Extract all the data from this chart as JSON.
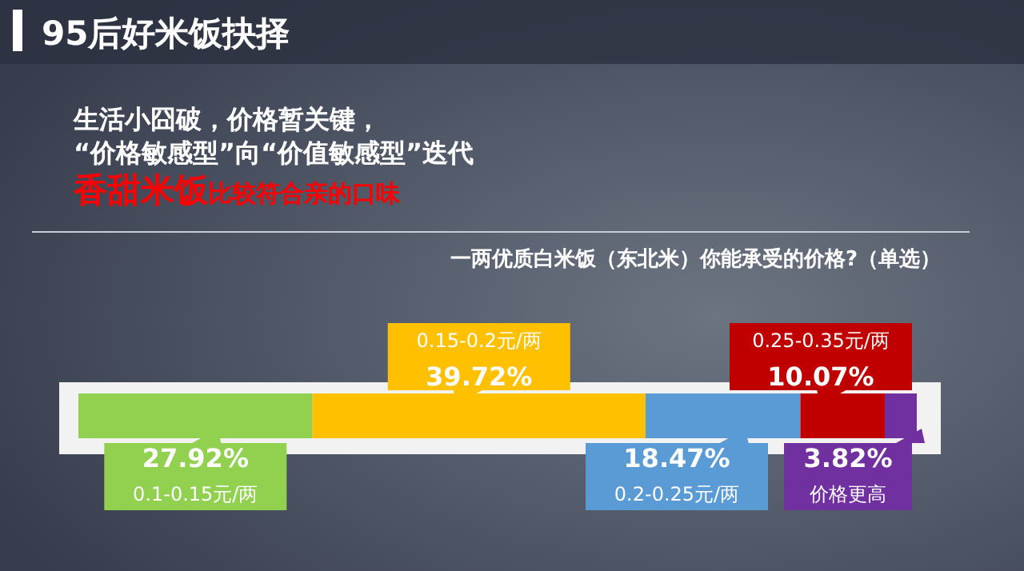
{
  "chart_data": {
    "type": "bar",
    "orientation": "horizontal",
    "stacked": true,
    "title": "95后好米饭抉择",
    "subtitle": "生活小囧破，价格暂关键，",
    "annotations": [
      "“价格敏感型”向“价值敏感型”迭代",
      "香甜米饭",
      "比较符合亲的口味",
      "一两优质白米饭（东北米）你能承受的价格?（单选）"
    ],
    "categories": [
      null
    ],
    "series": [
      {
        "name": "0.1-0.15元/两",
        "color": "#92d050",
        "values": [
          27.92
        ],
        "value_labels": [
          "27.92%"
        ]
      },
      {
        "name": "0.15-0.2元/两",
        "color": "#ffc000",
        "values": [
          39.72
        ],
        "value_labels": [
          "39.72%"
        ]
      },
      {
        "name": "0.2-0.25元/两",
        "color": "#5b9bd5",
        "values": [
          18.47
        ],
        "value_labels": [
          "18.47%"
        ]
      },
      {
        "name": "0.25-0.35元/两",
        "color": "#c00000",
        "values": [
          10.07
        ],
        "value_labels": [
          "10.07%"
        ]
      },
      {
        "name": "价格更高",
        "color": "#7030a0",
        "values": [
          3.82
        ],
        "value_labels": [
          "3.82%"
        ]
      }
    ]
  }
}
